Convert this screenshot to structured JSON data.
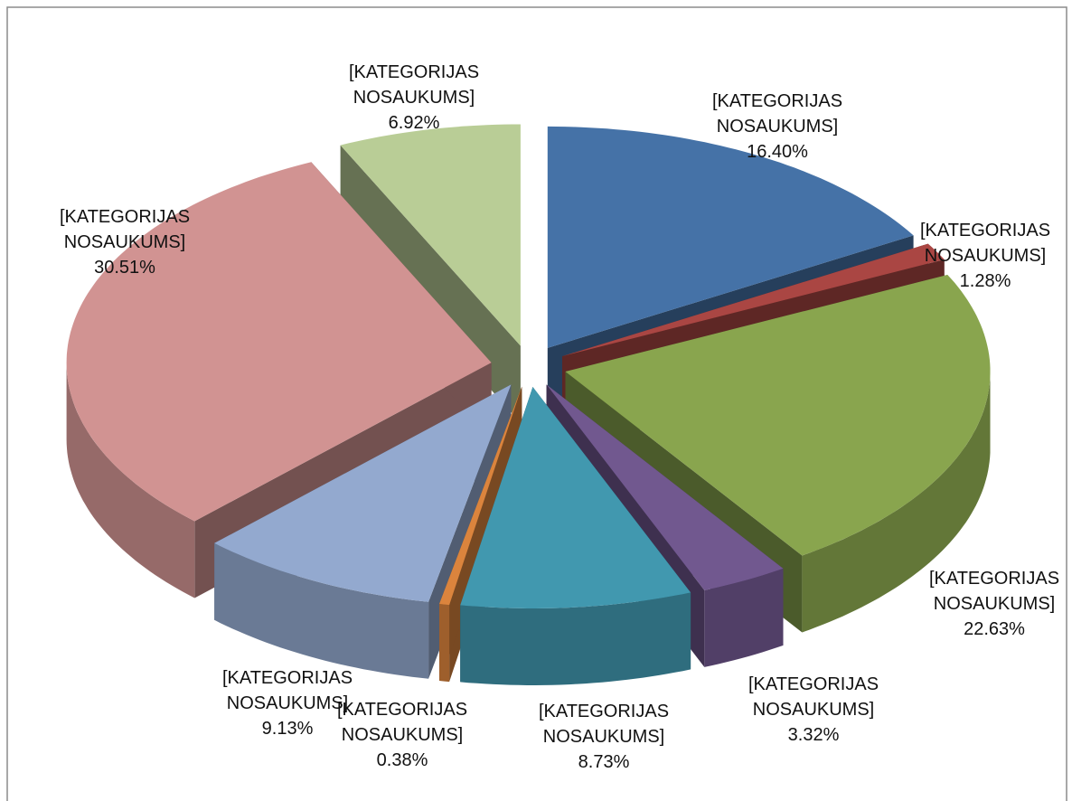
{
  "chart_data": {
    "type": "pie3d",
    "categories": [
      "[KATEGORIJAS NOSAUKUMS]",
      "[KATEGORIJAS NOSAUKUMS]",
      "[KATEGORIJAS NOSAUKUMS]",
      "[KATEGORIJAS NOSAUKUMS]",
      "[KATEGORIJAS NOSAUKUMS]",
      "[KATEGORIJAS NOSAUKUMS]",
      "[KATEGORIJAS NOSAUKUMS]",
      "[KATEGORIJAS NOSAUKUMS]",
      "[KATEGORIJAS NOSAUKUMS]"
    ],
    "values": [
      16.4,
      1.28,
      22.63,
      3.32,
      8.73,
      0.38,
      9.13,
      30.51,
      6.92
    ],
    "value_labels": [
      "16.40%",
      "1.28%",
      "22.63%",
      "3.32%",
      "8.73%",
      "0.38%",
      "9.13%",
      "30.51%",
      "6.92%"
    ],
    "colors": [
      "#4572a7",
      "#aa4643",
      "#89a54e",
      "#71588f",
      "#4198af",
      "#db843d",
      "#93a9cf",
      "#d19392",
      "#b9cd96"
    ]
  }
}
